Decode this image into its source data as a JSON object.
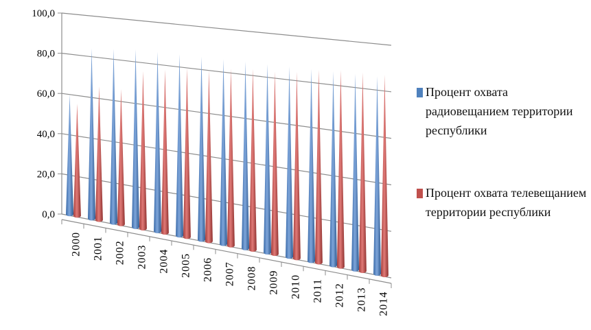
{
  "chart_data": {
    "type": "bar",
    "style": "3d-cone",
    "categories": [
      "2000",
      "2001",
      "2002",
      "2003",
      "2004",
      "2005",
      "2006",
      "2007",
      "2008",
      "2009",
      "2010",
      "2011",
      "2012",
      "2013",
      "2014"
    ],
    "series": [
      {
        "name": "Процент охвата радиовещанием территории республики",
        "color": "#4f81bd",
        "values": [
          60,
          84,
          85,
          86,
          86,
          86,
          86,
          86,
          86,
          86,
          86,
          86,
          86,
          86,
          86
        ]
      },
      {
        "name": "Процент охвата телевещанием территории республики",
        "color": "#c0504d",
        "values": [
          56,
          66,
          66,
          76,
          78,
          80,
          80,
          82,
          83,
          83,
          84,
          86,
          87,
          87,
          87
        ]
      }
    ],
    "ylim": [
      0,
      100
    ],
    "yticks": [
      "0,0",
      "20,0",
      "40,0",
      "60,0",
      "80,0",
      "100,0"
    ],
    "grid": true,
    "legend": "right"
  }
}
